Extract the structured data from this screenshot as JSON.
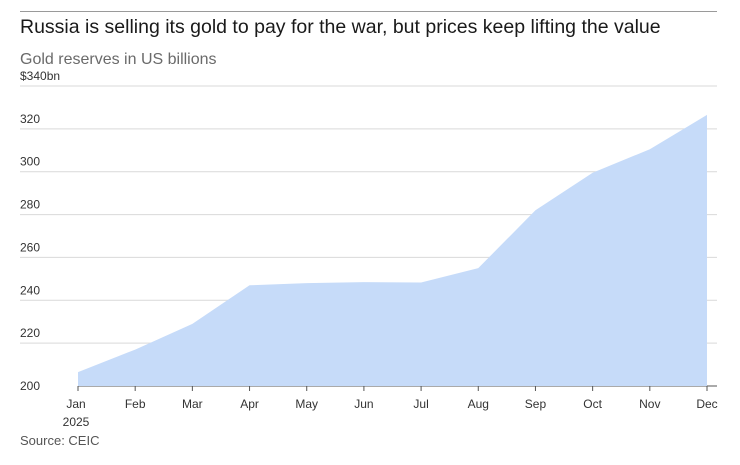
{
  "title": "Russia is selling its gold to pay for the war, but prices keep lifting the value",
  "subtitle": "Gold reserves in US billions",
  "source": "Source: CEIC",
  "colors": {
    "area": "#c6dbf9",
    "grid": "#d9d9d9",
    "axis": "#555555"
  },
  "chart_data": {
    "type": "area",
    "title": "Russia is selling its gold to pay for the war, but prices keep lifting the value",
    "subtitle": "Gold reserves in US billions",
    "categories": [
      "Jan",
      "Feb",
      "Mar",
      "Apr",
      "May",
      "Jun",
      "Jul",
      "Aug",
      "Sep",
      "Oct",
      "Nov",
      "Dec"
    ],
    "x_sublabel": "2025",
    "series": [
      {
        "values": [
          206.5,
          217,
          229,
          247,
          248,
          248.5,
          248.3,
          255,
          282,
          299.5,
          310.5,
          326.5
        ]
      }
    ],
    "ylim": [
      200,
      340
    ],
    "yticks": [
      200,
      220,
      240,
      260,
      280,
      300,
      320,
      340
    ],
    "ytick_labels": [
      "200",
      "220",
      "240",
      "260",
      "280",
      "300",
      "320",
      "$340bn"
    ],
    "grid": true,
    "legend": "none"
  }
}
